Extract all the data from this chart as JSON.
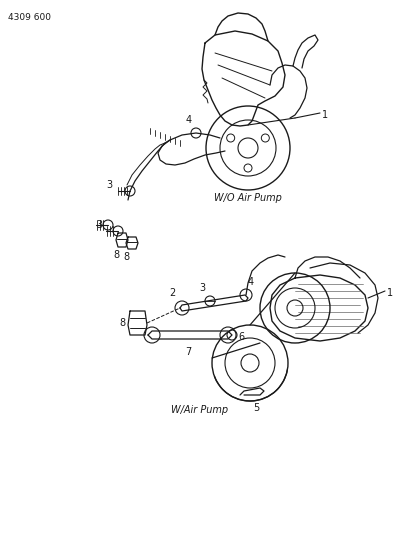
{
  "page_id": "4309 600",
  "background_color": "#ffffff",
  "line_color": "#1a1a1a",
  "fig_width": 4.08,
  "fig_height": 5.33,
  "dpi": 100,
  "diagram1_label": "W/O Air Pump",
  "diagram2_label": "W/Air Pump"
}
